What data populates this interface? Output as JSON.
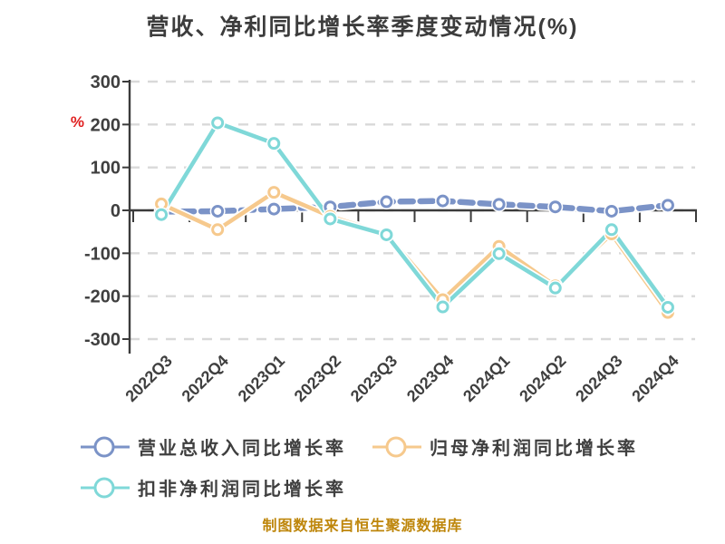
{
  "chart_data": {
    "type": "line",
    "title": "营收、净利同比增长率季度变动情况(%)",
    "unit_label": "%",
    "unit_label_color": "#e02020",
    "categories": [
      "2022Q3",
      "2022Q4",
      "2023Q1",
      "2023Q2",
      "2023Q3",
      "2023Q4",
      "2024Q1",
      "2024Q2",
      "2024Q3",
      "2024Q4"
    ],
    "series": [
      {
        "name": "营业总收入同比增长率",
        "color": "#7b93c7",
        "line_style": "dashed",
        "values": [
          -3,
          -2,
          3,
          8,
          20,
          22,
          14,
          8,
          -2,
          12
        ]
      },
      {
        "name": "归母净利润同比增长率",
        "color": "#f6c98d",
        "line_style": "solid",
        "values": [
          15,
          -45,
          42,
          -14,
          -55,
          -208,
          -84,
          -176,
          -55,
          -238
        ]
      },
      {
        "name": "扣非净利润同比增长率",
        "color": "#7fd8d8",
        "line_style": "solid",
        "values": [
          -10,
          204,
          156,
          -20,
          -57,
          -225,
          -101,
          -181,
          -45,
          -226
        ]
      }
    ],
    "ylim": [
      -300,
      300
    ],
    "ytick_interval": 100,
    "grid": "horizontal-dashed",
    "legend_position": "bottom"
  },
  "footer": {
    "text": "制图数据来自恒生聚源数据库",
    "color": "#be860b"
  },
  "colors": {
    "background": "#ffffff",
    "axis": "#3b3b3b",
    "gridline": "#d9d9d9",
    "tick_label": "#3f3f3f",
    "title": "#3c3c3c"
  }
}
